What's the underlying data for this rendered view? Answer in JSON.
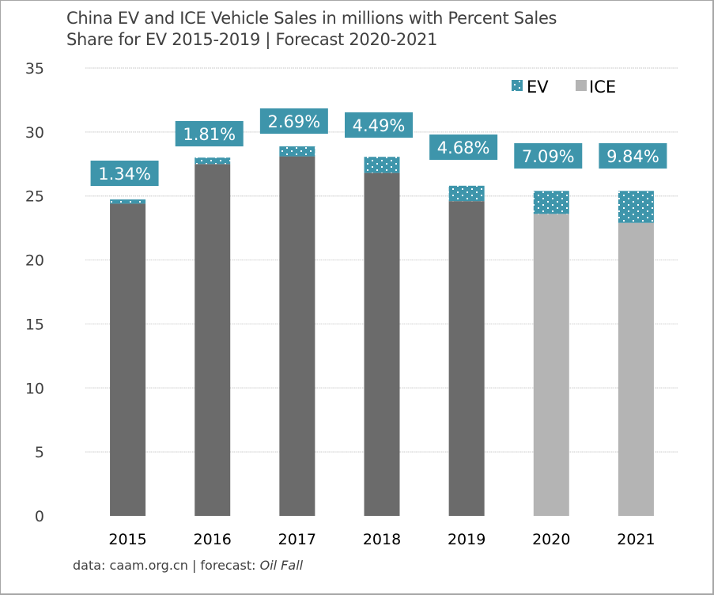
{
  "chart_data": {
    "type": "bar",
    "stacked": true,
    "title": "China EV and ICE Vehicle Sales in millions with Percent Sales Share for EV 2015-2019 | Forecast 2020-2021",
    "title_lines": [
      "China EV and ICE Vehicle Sales in millions with Percent Sales",
      "Share for EV 2015-2019 | Forecast 2020-2021"
    ],
    "xlabel": "",
    "ylabel": "",
    "ylim": [
      0,
      35
    ],
    "yticks": [
      0,
      5,
      10,
      15,
      20,
      25,
      30,
      35
    ],
    "grid": true,
    "legend_position": "top-right",
    "categories": [
      "2015",
      "2016",
      "2017",
      "2018",
      "2019",
      "2020",
      "2021"
    ],
    "forecast_categories": [
      "2020",
      "2021"
    ],
    "series": [
      {
        "name": "ICE",
        "values": [
          24.4,
          27.5,
          28.1,
          26.8,
          24.6,
          23.6,
          22.9
        ]
      },
      {
        "name": "EV",
        "values": [
          0.33,
          0.5,
          0.78,
          1.26,
          1.2,
          1.8,
          2.5
        ]
      }
    ],
    "data_labels": [
      "1.34%",
      "1.81%",
      "2.69%",
      "4.49%",
      "4.68%",
      "7.09%",
      "9.84%"
    ],
    "colors": {
      "ev": "#3e95ab",
      "ice_actual": "#6b6b6b",
      "ice_forecast": "#b4b4b4",
      "label_bg": "#3e95ab",
      "grid": "#d0d0d0"
    },
    "source_text": "data: caam.org.cn | forecast: ",
    "source_italic": "Oil Fall"
  }
}
